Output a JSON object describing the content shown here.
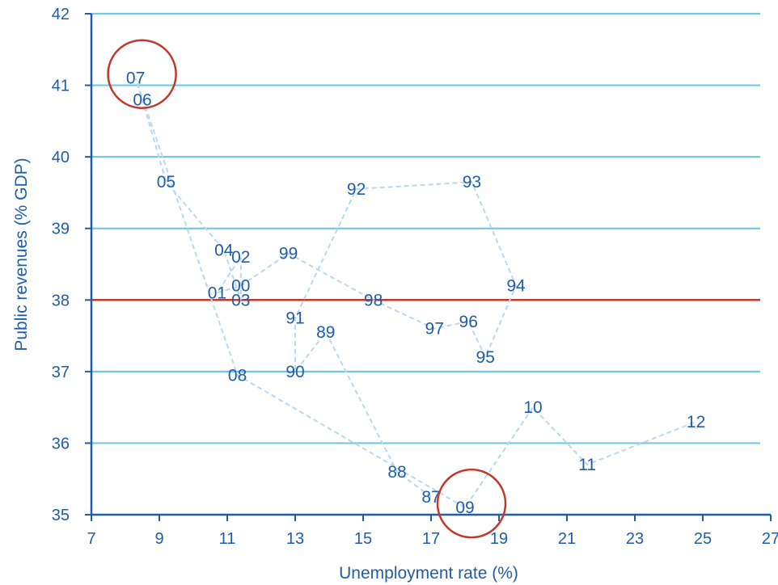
{
  "chart_data": {
    "type": "scatter",
    "title": "",
    "xlabel": "Unemployment rate (%)",
    "ylabel": "Public revenues (% GDP)",
    "xlim": [
      7,
      27
    ],
    "ylim": [
      35,
      42
    ],
    "xticks": [
      7,
      9,
      11,
      13,
      15,
      17,
      19,
      21,
      23,
      25,
      27
    ],
    "yticks": [
      35,
      36,
      37,
      38,
      39,
      40,
      41,
      42
    ],
    "grid": "horizontal",
    "reference_line": {
      "y": 38,
      "color": "#c0392b"
    },
    "connected": true,
    "colors": {
      "labels": "#1f5da8",
      "path": "#b8d8f0",
      "grid": "#6fc8e6",
      "axis": "#1f5da8",
      "reference": "#c0392b",
      "highlight": "#c0392b"
    },
    "points": [
      {
        "label": "87",
        "x": 17.0,
        "y": 35.25
      },
      {
        "label": "88",
        "x": 16.0,
        "y": 35.6
      },
      {
        "label": "89",
        "x": 13.9,
        "y": 37.55
      },
      {
        "label": "90",
        "x": 13.0,
        "y": 37.0
      },
      {
        "label": "91",
        "x": 13.0,
        "y": 37.75
      },
      {
        "label": "92",
        "x": 14.8,
        "y": 39.55
      },
      {
        "label": "93",
        "x": 18.2,
        "y": 39.65
      },
      {
        "label": "94",
        "x": 19.5,
        "y": 38.2
      },
      {
        "label": "95",
        "x": 18.6,
        "y": 37.2
      },
      {
        "label": "96",
        "x": 18.1,
        "y": 37.7
      },
      {
        "label": "97",
        "x": 17.1,
        "y": 37.6
      },
      {
        "label": "98",
        "x": 15.3,
        "y": 38.0
      },
      {
        "label": "99",
        "x": 12.8,
        "y": 38.65
      },
      {
        "label": "00",
        "x": 11.4,
        "y": 38.2
      },
      {
        "label": "01",
        "x": 10.7,
        "y": 38.1
      },
      {
        "label": "02",
        "x": 11.4,
        "y": 38.6
      },
      {
        "label": "03",
        "x": 11.4,
        "y": 38.0
      },
      {
        "label": "04",
        "x": 10.9,
        "y": 38.7
      },
      {
        "label": "05",
        "x": 9.2,
        "y": 39.65
      },
      {
        "label": "06",
        "x": 8.5,
        "y": 40.8
      },
      {
        "label": "07",
        "x": 8.3,
        "y": 41.1
      },
      {
        "label": "08",
        "x": 11.3,
        "y": 36.95
      },
      {
        "label": "09",
        "x": 18.0,
        "y": 35.1
      },
      {
        "label": "10",
        "x": 20.0,
        "y": 36.5
      },
      {
        "label": "11",
        "x": 21.6,
        "y": 35.7
      },
      {
        "label": "12",
        "x": 24.8,
        "y": 36.3
      }
    ],
    "highlighted": [
      "07",
      "09"
    ]
  }
}
